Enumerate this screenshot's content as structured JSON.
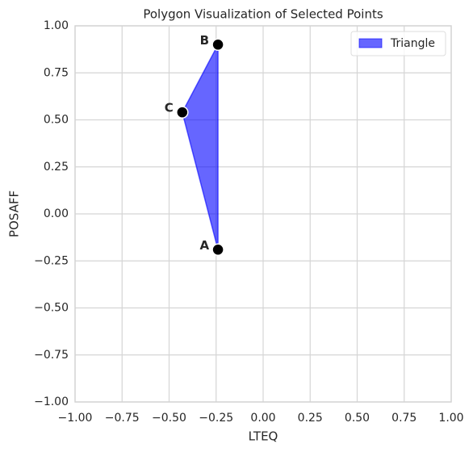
{
  "chart_data": {
    "type": "polygon",
    "title": "Polygon Visualization of Selected Points",
    "x_label": "LTEQ",
    "y_label": "POSAFF",
    "series": [
      {
        "name": "Triangle",
        "color": "#0000ff",
        "alpha": 0.6,
        "point_labels": [
          "A",
          "B",
          "C"
        ],
        "x": [
          -0.24,
          -0.24,
          -0.43
        ],
        "y": [
          -0.19,
          0.9,
          0.54
        ]
      }
    ],
    "point_color": "#000000",
    "xlim": [
      -1,
      1
    ],
    "ylim": [
      -1,
      1
    ],
    "xticks": [
      {
        "value": -1,
        "label": "−1.00"
      },
      {
        "value": -0.75,
        "label": "−0.75"
      },
      {
        "value": -0.5,
        "label": "−0.50"
      },
      {
        "value": -0.25,
        "label": "−0.25"
      },
      {
        "value": 0,
        "label": "0.00"
      },
      {
        "value": 0.25,
        "label": "0.25"
      },
      {
        "value": 0.5,
        "label": "0.50"
      },
      {
        "value": 0.75,
        "label": "0.75"
      },
      {
        "value": 1,
        "label": "1.00"
      }
    ],
    "yticks": [
      {
        "value": -1,
        "label": "−1.00"
      },
      {
        "value": -0.75,
        "label": "−0.75"
      },
      {
        "value": -0.5,
        "label": "−0.50"
      },
      {
        "value": -0.25,
        "label": "−0.25"
      },
      {
        "value": 0,
        "label": "0.00"
      },
      {
        "value": 0.25,
        "label": "0.25"
      },
      {
        "value": 0.5,
        "label": "0.50"
      },
      {
        "value": 0.75,
        "label": "0.75"
      },
      {
        "value": 1,
        "label": "1.00"
      }
    ],
    "grid": true,
    "legend": "upper right"
  }
}
